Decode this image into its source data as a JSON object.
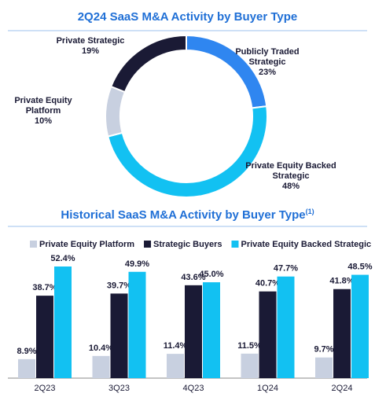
{
  "chart_data": [
    {
      "type": "donut",
      "title": "2Q24 SaaS M&A Activity by Buyer Type",
      "categories": [
        "Publicly Traded Strategic",
        "Private Equity Backed Strategic",
        "Private Equity Platform",
        "Private Strategic"
      ],
      "values": [
        23,
        48,
        10,
        19
      ],
      "value_labels": [
        "23%",
        "48%",
        "10%",
        "19%"
      ],
      "colors": [
        "#2f86f0",
        "#12c1f2",
        "#c8d0e0",
        "#1a1a35"
      ]
    },
    {
      "type": "bar",
      "title": "Historical SaaS M&A Activity by Buyer Type",
      "title_note": "(1)",
      "categories": [
        "2Q23",
        "3Q23",
        "4Q23",
        "1Q24",
        "2Q24"
      ],
      "series": [
        {
          "name": "Private Equity Platform",
          "color": "#c8d0e0",
          "values": [
            8.9,
            10.4,
            11.4,
            11.5,
            9.7
          ],
          "value_labels": [
            "8.9%",
            "10.4%",
            "11.4%",
            "11.5%",
            "9.7%"
          ]
        },
        {
          "name": "Strategic Buyers",
          "color": "#1a1a35",
          "values": [
            38.7,
            39.7,
            43.6,
            40.7,
            41.8
          ],
          "value_labels": [
            "38.7%",
            "39.7%",
            "43.6%",
            "40.7%",
            "41.8%"
          ]
        },
        {
          "name": "Private Equity Backed Strategic",
          "color": "#12c1f2",
          "values": [
            52.4,
            49.9,
            45.0,
            47.7,
            48.5
          ],
          "value_labels": [
            "52.4%",
            "49.9%",
            "45.0%",
            "47.7%",
            "48.5%"
          ]
        }
      ]
    }
  ]
}
